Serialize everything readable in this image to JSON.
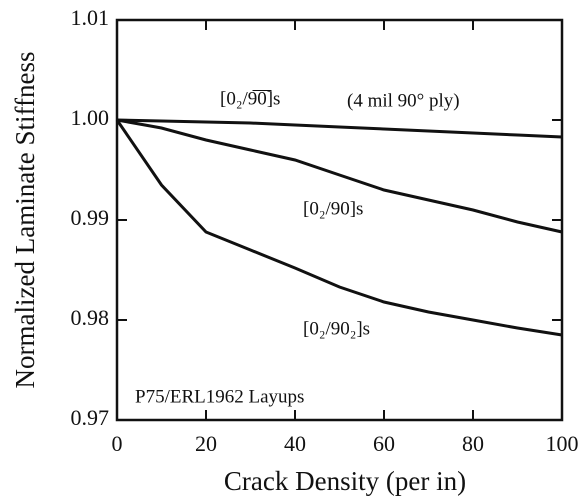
{
  "chart_data": {
    "type": "line",
    "xlabel": "Crack Density (per in)",
    "ylabel": "Normalized Laminate Stiffness",
    "x": [
      0,
      10,
      20,
      30,
      40,
      50,
      60,
      70,
      80,
      90,
      100
    ],
    "series": [
      {
        "name": "[0₂/9̅0̅]s",
        "color": "#111111",
        "values": [
          1.0,
          0.9999,
          0.9998,
          0.9997,
          0.9995,
          0.9993,
          0.9991,
          0.9989,
          0.9987,
          0.9985,
          0.9983
        ]
      },
      {
        "name": "[0₂/90]s",
        "color": "#111111",
        "values": [
          1.0,
          0.9992,
          0.998,
          0.997,
          0.996,
          0.9945,
          0.993,
          0.992,
          0.991,
          0.9898,
          0.9888
        ]
      },
      {
        "name": "[0₂/90₂]s",
        "color": "#111111",
        "values": [
          1.0,
          0.9935,
          0.9888,
          0.987,
          0.9852,
          0.9833,
          0.9818,
          0.9808,
          0.98,
          0.9792,
          0.9785
        ]
      }
    ],
    "annotations": [
      "(4 mil 90° ply)",
      "P75/ERL1962 Layups"
    ],
    "xlim": [
      0,
      100
    ],
    "xticks": [
      0,
      20,
      40,
      60,
      80,
      100
    ],
    "ylim": [
      0.97,
      1.01
    ],
    "yticks": [
      0.97,
      0.98,
      0.99,
      {
        "value": 1,
        "label": "1.00"
      },
      1.01
    ]
  }
}
